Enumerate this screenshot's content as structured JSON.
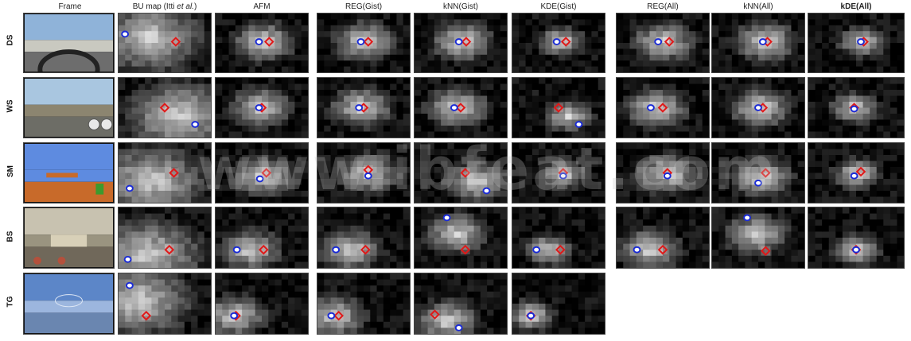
{
  "column_headers": [
    "Frame",
    "BU map (Itti ",
    "AFM",
    "REG(Gist)",
    "kNN(Gist)",
    "KDE(Gist)",
    "REG(All)",
    "kNN(All)",
    "kDE(All)"
  ],
  "column_header_italic_suffix": "et al.",
  "column_header_suffix_end": ")",
  "row_labels": [
    "DS",
    "WS",
    "SM",
    "BS",
    "TG"
  ],
  "watermark_text": "www.ibfeat.com",
  "marker_colors": {
    "blue_circle": "#1a2bd6",
    "red_diamond": "#e01818"
  }
}
